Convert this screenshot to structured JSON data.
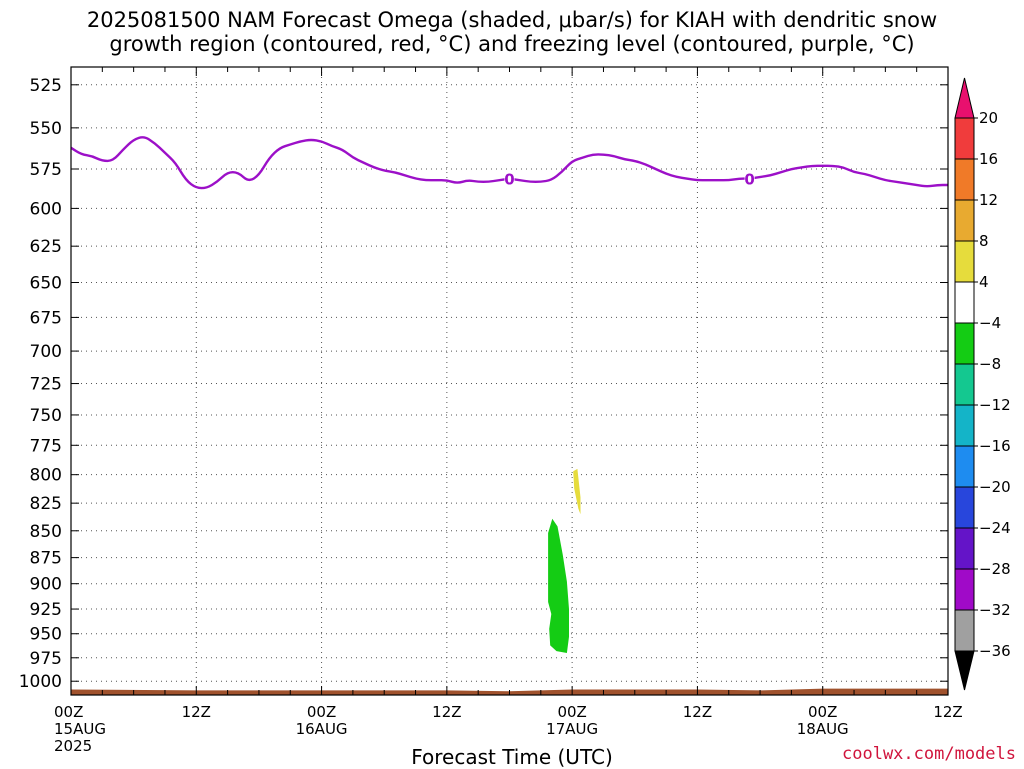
{
  "title_line1": "2025081500 NAM Forecast Omega (shaded, μbar/s) for KIAH with dendritic snow",
  "title_line2": "growth region (contoured, red, °C) and freezing level (contoured, purple, °C)",
  "xlabel": "Forecast Time (UTC)",
  "credit": "coolwx.com/models",
  "chart_data": {
    "type": "heatmap",
    "title": "2025081500 NAM Forecast Omega (shaded, μbar/s) for KIAH with dendritic snow growth region (contoured, red, °C) and freezing level (contoured, purple, °C)",
    "xlabel": "Forecast Time (UTC)",
    "ylabel": "",
    "x_unit": "hours since 2025-08-15 00Z",
    "xlim": [
      0,
      84
    ],
    "ylim": [
      1015,
      515
    ],
    "y_scale": "log",
    "y_ticks": [
      525,
      550,
      575,
      600,
      625,
      650,
      675,
      700,
      725,
      750,
      775,
      800,
      825,
      850,
      875,
      900,
      925,
      950,
      975,
      1000
    ],
    "x_ticks": [
      {
        "x": 0,
        "lines": [
          "00Z",
          "15AUG",
          "2025"
        ]
      },
      {
        "x": 12,
        "lines": [
          "12Z"
        ]
      },
      {
        "x": 24,
        "lines": [
          "00Z",
          "16AUG"
        ]
      },
      {
        "x": 36,
        "lines": [
          "12Z"
        ]
      },
      {
        "x": 48,
        "lines": [
          "00Z",
          "17AUG"
        ]
      },
      {
        "x": 60,
        "lines": [
          "12Z"
        ]
      },
      {
        "x": 72,
        "lines": [
          "00Z",
          "18AUG"
        ]
      },
      {
        "x": 84,
        "lines": [
          "12Z"
        ]
      }
    ],
    "grid": true,
    "colorbar": {
      "levels": [
        "20",
        "16",
        "12",
        "8",
        "4",
        "−4",
        "−8",
        "−12",
        "−16",
        "−20",
        "−24",
        "−28",
        "−32",
        "−36"
      ],
      "colors": [
        "#e8106e",
        "#f03c3c",
        "#f07a28",
        "#e8aa30",
        "#e6dc3c",
        "#ffffff",
        "#14cc14",
        "#14c890",
        "#14b4c8",
        "#1e8cf0",
        "#2846dc",
        "#6414c8",
        "#a00ac8",
        "#a0a0a0",
        "#000000"
      ]
    },
    "freezing_level": {
      "label": "0",
      "color": "#9c10c8",
      "label_at_x": [
        42,
        65
      ],
      "x": [
        0,
        1,
        2,
        3,
        4,
        5,
        6,
        7,
        8,
        9,
        10,
        11,
        12,
        13,
        14,
        15,
        16,
        17,
        18,
        19,
        20,
        21,
        22,
        23,
        24,
        25,
        26,
        27,
        28,
        29,
        30,
        31,
        32,
        33,
        34,
        35,
        36,
        37,
        38,
        39,
        40,
        41,
        42,
        43,
        44,
        45,
        46,
        47,
        48,
        49,
        50,
        51,
        52,
        53,
        54,
        55,
        56,
        57,
        58,
        59,
        60,
        61,
        62,
        63,
        64,
        65,
        66,
        67,
        68,
        69,
        70,
        71,
        72,
        73,
        74,
        75,
        76,
        77,
        78,
        79,
        80,
        81,
        82,
        83,
        84
      ],
      "pressure": [
        562,
        566,
        567,
        570,
        570,
        563,
        557,
        555,
        559,
        565,
        571,
        582,
        587,
        587,
        583,
        577,
        577,
        583,
        579,
        568,
        562,
        560,
        558,
        557,
        558,
        561,
        563,
        568,
        571,
        574,
        576,
        577,
        579,
        581,
        582,
        582,
        582,
        584,
        582,
        583,
        583,
        582,
        581,
        582,
        583,
        583,
        582,
        577,
        570,
        568,
        566,
        566,
        567,
        569,
        570,
        572,
        575,
        578,
        580,
        581,
        582,
        582,
        582,
        582,
        581,
        581,
        580,
        579,
        577,
        575,
        574,
        573,
        573,
        573,
        574,
        577,
        578,
        580,
        582,
        583,
        584,
        585,
        586,
        585,
        585
      ]
    },
    "omega_regions": [
      {
        "label": "-4 to -8 μbar/s",
        "color": "#14cc14",
        "points": [
          [
            45.7,
            852
          ],
          [
            46.1,
            839
          ],
          [
            46.6,
            846
          ],
          [
            47.1,
            872
          ],
          [
            47.5,
            898
          ],
          [
            47.7,
            925
          ],
          [
            47.7,
            953
          ],
          [
            47.5,
            970
          ],
          [
            46.5,
            968
          ],
          [
            45.9,
            962
          ],
          [
            45.8,
            945
          ],
          [
            46.0,
            930
          ],
          [
            45.7,
            918
          ],
          [
            45.7,
            880
          ]
        ]
      },
      {
        "label": "4 to 8 μbar/s",
        "color": "#e6dc3c",
        "points": [
          [
            48.1,
            797
          ],
          [
            48.5,
            795
          ],
          [
            48.8,
            820
          ],
          [
            48.8,
            835
          ],
          [
            48.6,
            830
          ],
          [
            48.2,
            812
          ]
        ]
      }
    ],
    "terrain": {
      "color": "#a0522d",
      "x": [
        0,
        12,
        24,
        36,
        42,
        48,
        60,
        66,
        72,
        84
      ],
      "pressure": [
        1009,
        1010,
        1010,
        1010,
        1011,
        1009,
        1009,
        1010,
        1008,
        1008
      ]
    }
  }
}
